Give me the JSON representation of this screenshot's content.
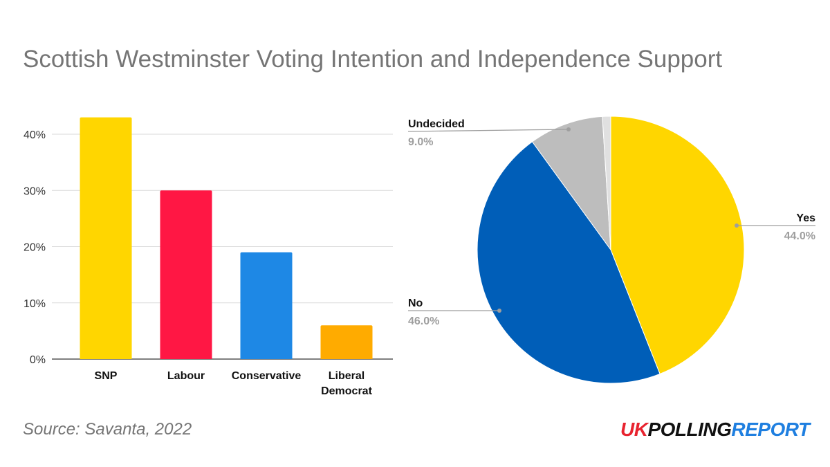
{
  "title": "Scottish Westminster Voting Intention and Independence Support",
  "source": "Source: Savanta, 2022",
  "logo": {
    "part1": "UK",
    "part2": "POLLING",
    "part3": "REPORT"
  },
  "chart_data": [
    {
      "type": "bar",
      "categories": [
        "SNP",
        "Labour",
        "Conservative",
        "Liberal Democrat"
      ],
      "category_lines": [
        [
          "SNP"
        ],
        [
          "Labour"
        ],
        [
          "Conservative"
        ],
        [
          "Liberal",
          "Democrat"
        ]
      ],
      "values": [
        43,
        30,
        19,
        6
      ],
      "colors": [
        "#ffd600",
        "#ff1744",
        "#1e88e5",
        "#ffab00"
      ],
      "ylim": [
        0,
        40
      ],
      "yticks": [
        "0%",
        "10%",
        "20%",
        "30%",
        "40%"
      ],
      "ytick_values": [
        0,
        10,
        20,
        30,
        40
      ],
      "grid": true
    },
    {
      "type": "pie",
      "slices": [
        {
          "label": "Yes",
          "value": 44,
          "display": "44.0%",
          "color": "#ffd600"
        },
        {
          "label": "No",
          "value": 46,
          "display": "46.0%",
          "color": "#005eb8"
        },
        {
          "label": "Undecided",
          "value": 9,
          "display": "9.0%",
          "color": "#bdbdbd"
        },
        {
          "label": "",
          "value": 1,
          "display": "",
          "color": "#e0e0e0"
        }
      ]
    }
  ]
}
